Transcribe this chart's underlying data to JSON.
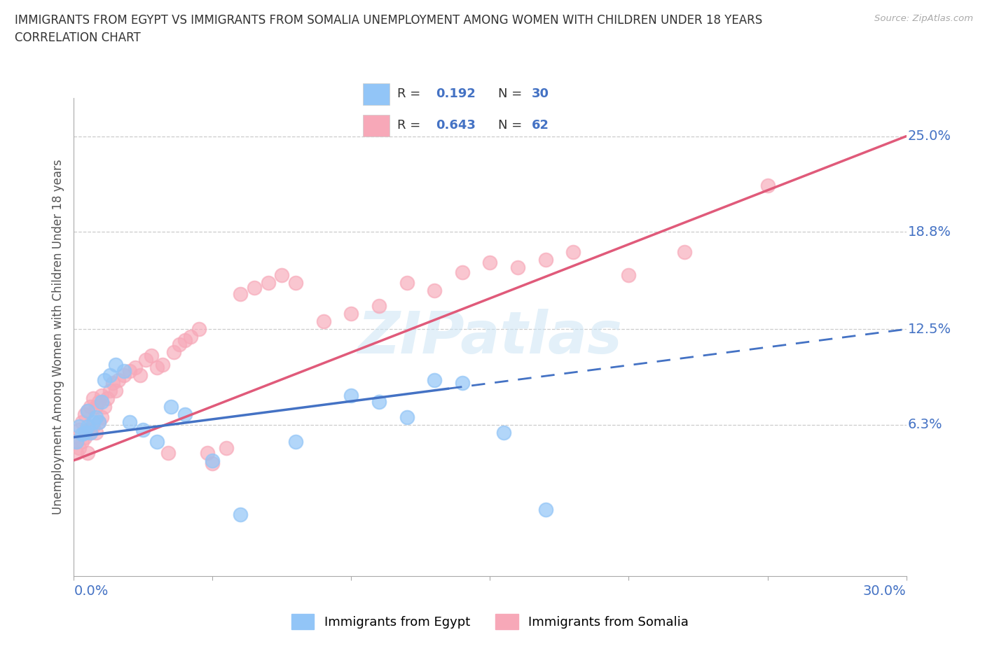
{
  "title_line1": "IMMIGRANTS FROM EGYPT VS IMMIGRANTS FROM SOMALIA UNEMPLOYMENT AMONG WOMEN WITH CHILDREN UNDER 18 YEARS",
  "title_line2": "CORRELATION CHART",
  "source": "Source: ZipAtlas.com",
  "ylabel": "Unemployment Among Women with Children Under 18 years",
  "y_ticks": [
    0.063,
    0.125,
    0.188,
    0.25
  ],
  "y_tick_labels": [
    "6.3%",
    "12.5%",
    "18.8%",
    "25.0%"
  ],
  "xmin": 0.0,
  "xmax": 0.3,
  "ymin": -0.035,
  "ymax": 0.275,
  "egypt_color": "#92c5f7",
  "egypt_line_color": "#4472c4",
  "somalia_color": "#f7a8b8",
  "somalia_line_color": "#e05a7a",
  "legend_text_color": "#4472c4",
  "egypt_R": "0.192",
  "egypt_N": "30",
  "somalia_R": "0.643",
  "somalia_N": "62",
  "watermark": "ZIPatlas",
  "egypt_scatter_x": [
    0.001,
    0.002,
    0.003,
    0.004,
    0.005,
    0.005,
    0.006,
    0.007,
    0.008,
    0.009,
    0.01,
    0.011,
    0.013,
    0.015,
    0.018,
    0.02,
    0.025,
    0.03,
    0.035,
    0.04,
    0.05,
    0.06,
    0.08,
    0.1,
    0.11,
    0.12,
    0.13,
    0.14,
    0.155,
    0.17
  ],
  "egypt_scatter_y": [
    0.052,
    0.062,
    0.057,
    0.058,
    0.062,
    0.072,
    0.058,
    0.065,
    0.068,
    0.065,
    0.078,
    0.092,
    0.095,
    0.102,
    0.098,
    0.065,
    0.06,
    0.052,
    0.075,
    0.07,
    0.04,
    0.005,
    0.052,
    0.082,
    0.078,
    0.068,
    0.092,
    0.09,
    0.058,
    0.008
  ],
  "somalia_scatter_x": [
    0.001,
    0.001,
    0.002,
    0.002,
    0.003,
    0.003,
    0.004,
    0.004,
    0.005,
    0.005,
    0.005,
    0.006,
    0.006,
    0.007,
    0.007,
    0.008,
    0.008,
    0.009,
    0.009,
    0.01,
    0.01,
    0.011,
    0.012,
    0.013,
    0.014,
    0.015,
    0.016,
    0.018,
    0.02,
    0.022,
    0.024,
    0.026,
    0.028,
    0.03,
    0.032,
    0.034,
    0.036,
    0.038,
    0.04,
    0.042,
    0.045,
    0.048,
    0.05,
    0.055,
    0.06,
    0.065,
    0.07,
    0.075,
    0.08,
    0.09,
    0.1,
    0.11,
    0.12,
    0.13,
    0.14,
    0.15,
    0.16,
    0.17,
    0.18,
    0.2,
    0.22,
    0.25
  ],
  "somalia_scatter_y": [
    0.052,
    0.045,
    0.048,
    0.06,
    0.052,
    0.065,
    0.055,
    0.07,
    0.06,
    0.045,
    0.072,
    0.058,
    0.075,
    0.062,
    0.08,
    0.058,
    0.075,
    0.065,
    0.078,
    0.068,
    0.082,
    0.075,
    0.08,
    0.085,
    0.09,
    0.085,
    0.092,
    0.095,
    0.098,
    0.1,
    0.095,
    0.105,
    0.108,
    0.1,
    0.102,
    0.045,
    0.11,
    0.115,
    0.118,
    0.12,
    0.125,
    0.045,
    0.038,
    0.048,
    0.148,
    0.152,
    0.155,
    0.16,
    0.155,
    0.13,
    0.135,
    0.14,
    0.155,
    0.15,
    0.162,
    0.168,
    0.165,
    0.17,
    0.175,
    0.16,
    0.175,
    0.218
  ]
}
